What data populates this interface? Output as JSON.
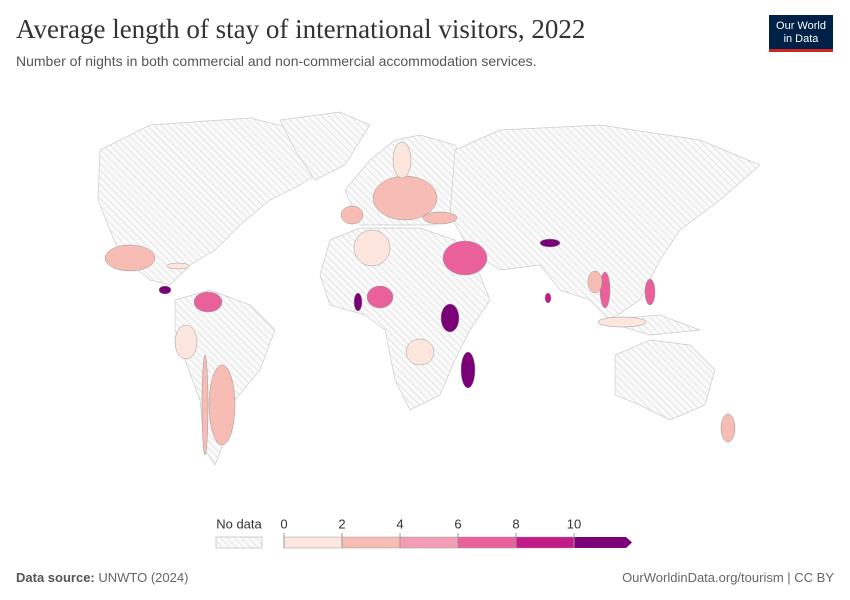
{
  "title": "Average length of stay of international visitors, 2022",
  "subtitle": "Number of nights in both commercial and non-commercial accommodation services.",
  "logo": [
    "Our World",
    "in Data"
  ],
  "source_label": "Data source:",
  "source": "UNWTO (2024)",
  "url": "OurWorldinData.org/tourism | CC BY",
  "chart_data": {
    "type": "choropleth",
    "legend": {
      "no_data": "No data",
      "ticks": [
        0,
        2,
        4,
        6,
        8,
        10
      ],
      "colors": [
        "#fde6dd",
        "#f7bcb3",
        "#f29db5",
        "#e9609a",
        "#c51b8a",
        "#7a0177"
      ]
    },
    "values": [
      3,
      7,
      11,
      10,
      7,
      7,
      11,
      7,
      10,
      7,
      3,
      3,
      3,
      3,
      3,
      1,
      1,
      3,
      1,
      1,
      8,
      10,
      1,
      1,
      3
    ]
  }
}
